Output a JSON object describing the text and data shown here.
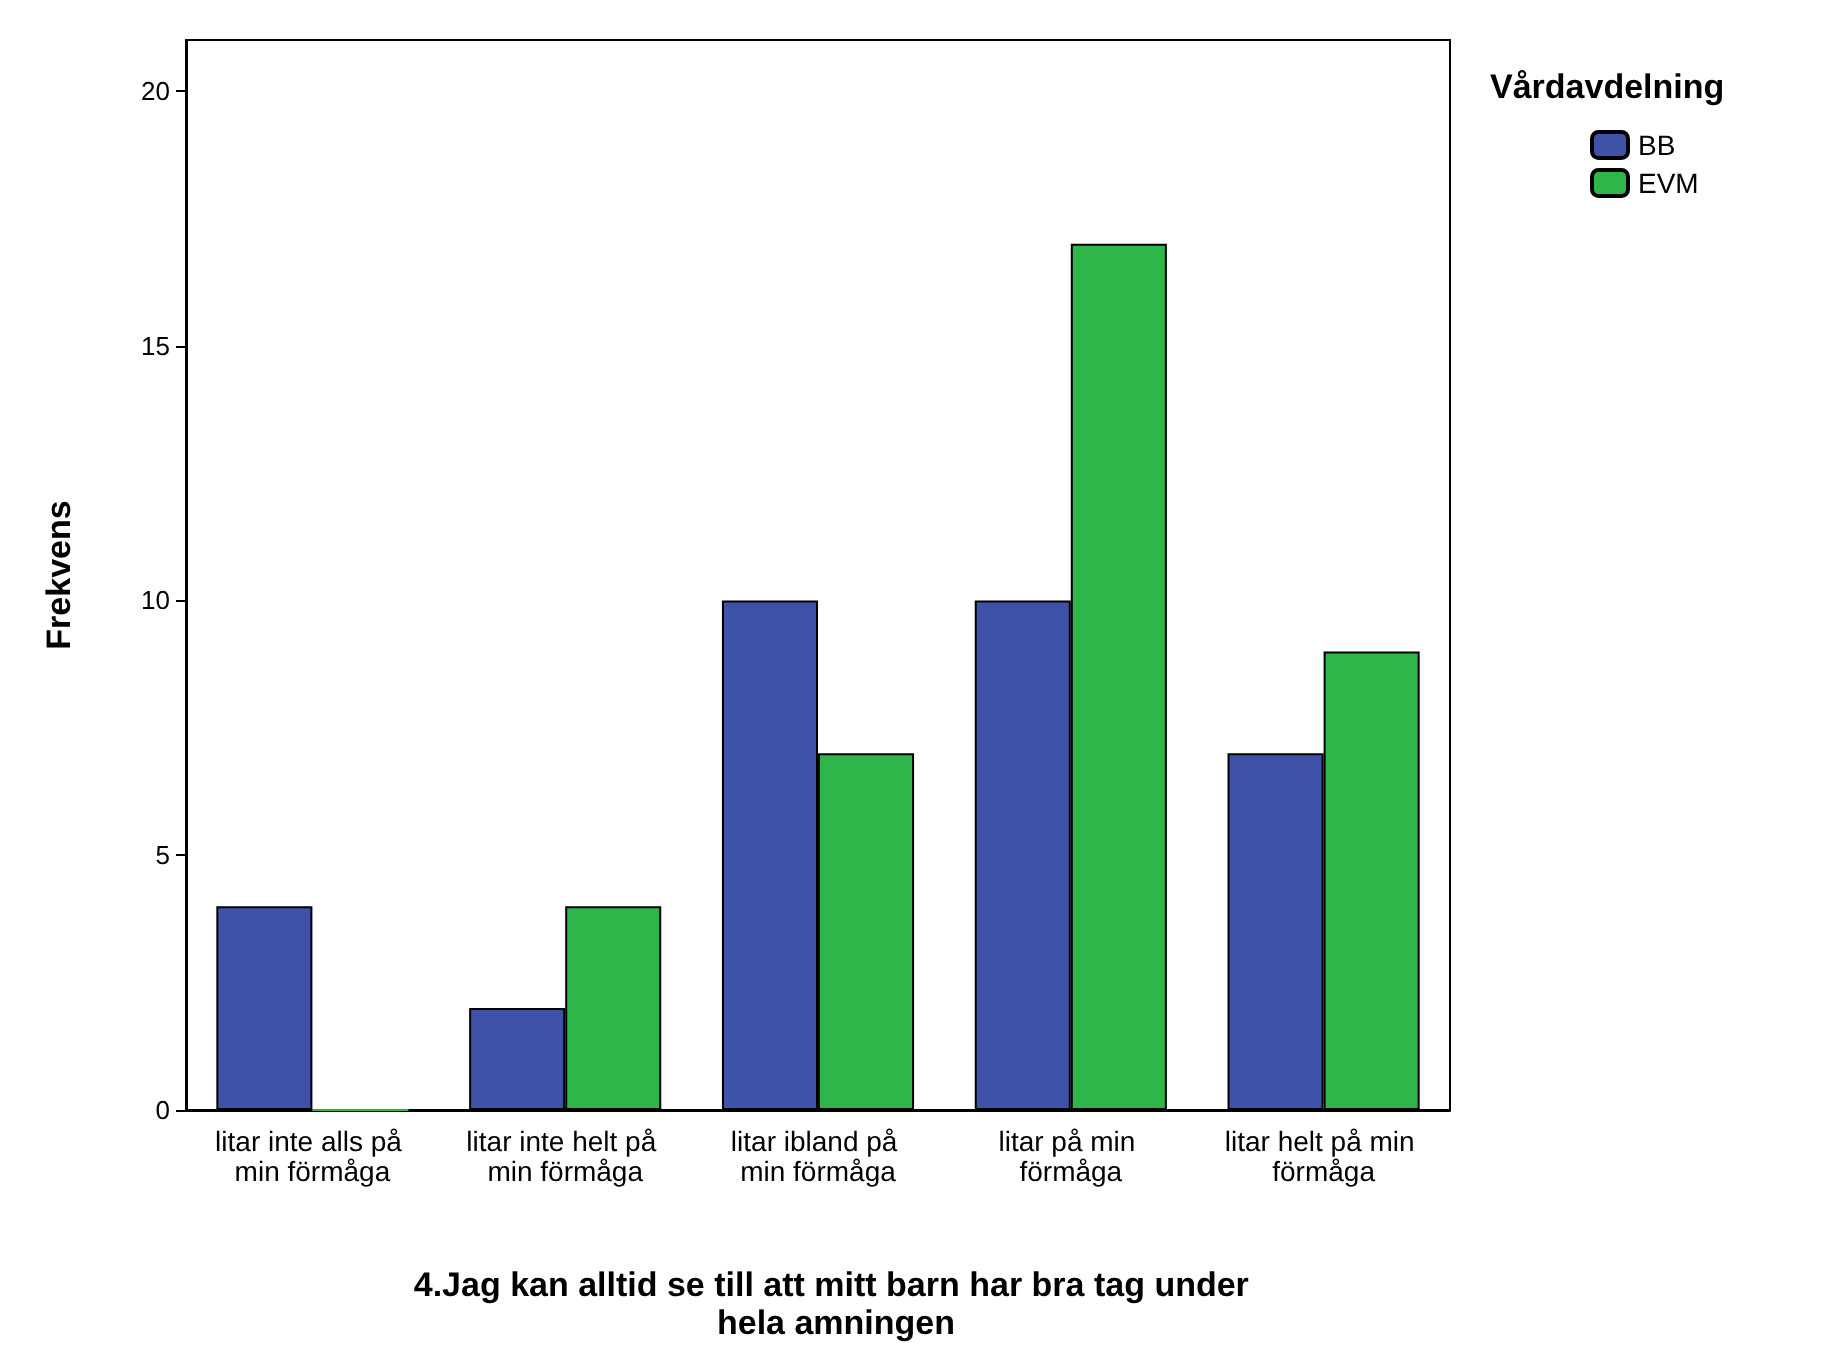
{
  "chart_data": {
    "type": "bar",
    "xlabel": "4.Jag kan alltid se till att mitt barn har bra tag under hela amningen",
    "ylabel": "Frekvens",
    "legend_title": "Vårdavdelning",
    "categories": [
      "litar inte alls på min förmåga",
      "litar inte helt på min förmåga",
      "litar ibland på min förmåga",
      "litar på min förmåga",
      "litar helt på min förmåga"
    ],
    "series": [
      {
        "name": "BB",
        "color": "#3e53a8",
        "values": [
          4,
          2,
          10,
          10,
          7
        ]
      },
      {
        "name": "EVM",
        "color": "#2fb64b",
        "values": [
          0,
          4,
          7,
          17,
          9
        ]
      }
    ],
    "ylim": [
      0,
      21
    ],
    "yticks": [
      0,
      5,
      10,
      15,
      20
    ],
    "grid": false,
    "legend": "top right"
  }
}
